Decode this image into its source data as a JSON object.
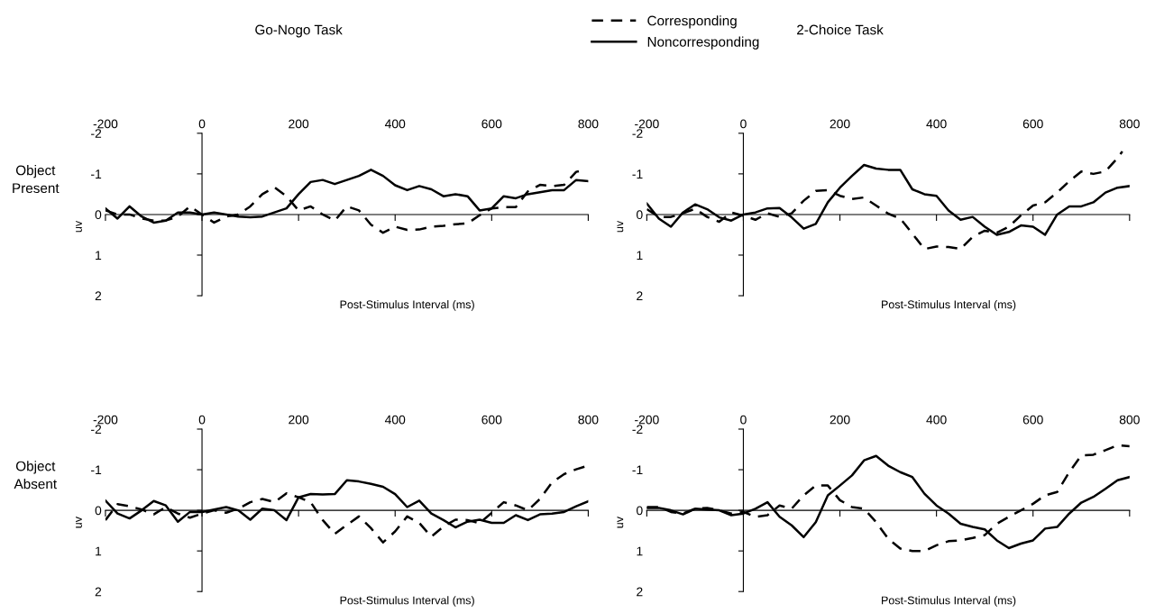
{
  "chart_data": [
    {
      "type": "line",
      "title": "Go-Nogo Task",
      "annotations": [
        "Object\nPresent"
      ],
      "xlabel": "Post-Stimulus Interval (ms)",
      "ylabel": "uv",
      "legend": "top",
      "xlim": [
        -200,
        800
      ],
      "ylim": [
        2,
        -2
      ],
      "xticks": [
        -200,
        0,
        200,
        400,
        600,
        800
      ],
      "yticks": [
        -2,
        -1,
        0,
        1,
        2
      ],
      "x": [
        -200,
        -175,
        -150,
        -125,
        -100,
        -75,
        -50,
        -25,
        0,
        25,
        50,
        75,
        100,
        125,
        150,
        175,
        200,
        225,
        250,
        275,
        300,
        325,
        350,
        375,
        400,
        425,
        450,
        475,
        500,
        525,
        550,
        575,
        600,
        625,
        650,
        675,
        700,
        725,
        750,
        775,
        800
      ],
      "series": [
        {
          "name": "Corresponding",
          "color": "#000000",
          "line_style": "dashed",
          "x": [
            -200,
            -175,
            -150,
            -125,
            -100,
            -75,
            -50,
            -25,
            0,
            25,
            50,
            75,
            100,
            125,
            150,
            175,
            200,
            225,
            250,
            275,
            300,
            325,
            350,
            375,
            400,
            425,
            450,
            475,
            500,
            525,
            550,
            575,
            600,
            625,
            650,
            675,
            700,
            725,
            750,
            775,
            782
          ],
          "values": [
            -0.1,
            0.0,
            0.0,
            0.1,
            0.15,
            0.15,
            0.05,
            -0.2,
            0.0,
            0.2,
            0.05,
            0.0,
            -0.2,
            -0.5,
            -0.67,
            -0.45,
            -0.1,
            -0.2,
            0.0,
            0.15,
            -0.2,
            -0.1,
            0.25,
            0.45,
            0.3,
            0.38,
            0.37,
            0.3,
            0.28,
            0.24,
            0.22,
            0.02,
            -0.15,
            -0.18,
            -0.18,
            -0.57,
            -0.73,
            -0.7,
            -0.73,
            -1.05,
            -1.07
          ]
        },
        {
          "name": "Noncorresponding",
          "color": "#000000",
          "line_style": "solid",
          "values": [
            -0.15,
            0.1,
            -0.2,
            0.05,
            0.2,
            0.15,
            -0.05,
            -0.05,
            0.0,
            -0.05,
            0.0,
            0.05,
            0.07,
            0.05,
            -0.05,
            -0.15,
            -0.5,
            -0.8,
            -0.85,
            -0.75,
            -0.85,
            -0.95,
            -1.1,
            -0.95,
            -0.72,
            -0.6,
            -0.7,
            -0.62,
            -0.45,
            -0.5,
            -0.45,
            -0.1,
            -0.15,
            -0.45,
            -0.4,
            -0.5,
            -0.55,
            -0.6,
            -0.6,
            -0.85,
            -0.82
          ]
        }
      ]
    },
    {
      "type": "line",
      "title": "2-Choice Task",
      "xlabel": "Post-Stimulus Interval (ms)",
      "ylabel": "uv",
      "xlim": [
        -200,
        800
      ],
      "ylim": [
        2,
        -2
      ],
      "xticks": [
        -200,
        0,
        200,
        400,
        600,
        800
      ],
      "yticks": [
        -2,
        -1,
        0,
        1,
        2
      ],
      "x": [
        -200,
        -175,
        -150,
        -125,
        -100,
        -75,
        -50,
        -25,
        0,
        25,
        50,
        75,
        100,
        125,
        150,
        175,
        200,
        225,
        250,
        275,
        300,
        325,
        350,
        375,
        400,
        425,
        450,
        475,
        500,
        525,
        550,
        575,
        600,
        625,
        650,
        675,
        700,
        725,
        750,
        775,
        800
      ],
      "series": [
        {
          "color": "#000000",
          "line_style": "dashed",
          "x": [
            -200,
            -175,
            -150,
            -125,
            -100,
            -75,
            -50,
            -25,
            0,
            25,
            50,
            75,
            100,
            125,
            150,
            175,
            200,
            225,
            250,
            275,
            300,
            325,
            350,
            375,
            400,
            425,
            450,
            475,
            500,
            525,
            550,
            575,
            600,
            625,
            650,
            675,
            700,
            725,
            750,
            775,
            785
          ],
          "values": [
            -0.13,
            0.06,
            0.06,
            -0.03,
            -0.14,
            0.06,
            0.18,
            -0.05,
            0.03,
            0.13,
            -0.03,
            0.06,
            -0.03,
            -0.34,
            -0.58,
            -0.6,
            -0.46,
            -0.38,
            -0.42,
            -0.22,
            -0.02,
            0.1,
            0.47,
            0.85,
            0.79,
            0.8,
            0.85,
            0.55,
            0.4,
            0.45,
            0.3,
            0.02,
            -0.22,
            -0.3,
            -0.54,
            -0.82,
            -1.06,
            -1.0,
            -1.06,
            -1.39,
            -1.55
          ]
        },
        {
          "color": "#000000",
          "line_style": "solid",
          "values": [
            -0.27,
            0.1,
            0.3,
            -0.05,
            -0.25,
            -0.13,
            0.07,
            0.15,
            0.0,
            -0.05,
            -0.15,
            -0.16,
            0.07,
            0.35,
            0.23,
            -0.3,
            -0.66,
            -0.95,
            -1.22,
            -1.13,
            -1.1,
            -1.1,
            -0.62,
            -0.5,
            -0.46,
            -0.1,
            0.13,
            0.06,
            0.3,
            0.5,
            0.43,
            0.27,
            0.3,
            0.5,
            0.0,
            -0.2,
            -0.2,
            -0.3,
            -0.54,
            -0.66,
            -0.7
          ]
        }
      ]
    },
    {
      "type": "line",
      "annotations": [
        "Object\nAbsent"
      ],
      "xlabel": "Post-Stimulus Interval (ms)",
      "ylabel": "uv",
      "xlim": [
        -200,
        800
      ],
      "ylim": [
        2,
        -2
      ],
      "xticks": [
        -200,
        0,
        200,
        400,
        600,
        800
      ],
      "yticks": [
        -2,
        -1,
        0,
        1,
        2
      ],
      "x": [
        -200,
        -175,
        -150,
        -125,
        -100,
        -75,
        -50,
        -25,
        0,
        25,
        50,
        75,
        100,
        125,
        150,
        175,
        200,
        225,
        250,
        275,
        300,
        325,
        350,
        375,
        400,
        425,
        450,
        475,
        500,
        525,
        550,
        575,
        600,
        625,
        650,
        675,
        700,
        725,
        750,
        775,
        800
      ],
      "series": [
        {
          "color": "#000000",
          "line_style": "dashed",
          "values": [
            0.24,
            -0.15,
            -0.1,
            -0.02,
            0.1,
            -0.08,
            0.08,
            0.18,
            0.08,
            0.0,
            0.06,
            -0.04,
            -0.2,
            -0.28,
            -0.2,
            -0.42,
            -0.32,
            -0.2,
            0.24,
            0.58,
            0.36,
            0.15,
            0.44,
            0.79,
            0.52,
            0.15,
            0.31,
            0.65,
            0.4,
            0.23,
            0.24,
            0.32,
            0.06,
            -0.2,
            -0.12,
            0.0,
            -0.28,
            -0.69,
            -0.89,
            -1.01,
            -1.1
          ]
        },
        {
          "color": "#000000",
          "line_style": "solid",
          "values": [
            -0.24,
            0.08,
            0.2,
            0.0,
            -0.23,
            -0.12,
            0.28,
            0.04,
            0.04,
            -0.02,
            -0.08,
            0.0,
            0.23,
            -0.04,
            0.0,
            0.24,
            -0.32,
            -0.4,
            -0.39,
            -0.4,
            -0.74,
            -0.71,
            -0.65,
            -0.58,
            -0.4,
            -0.08,
            -0.24,
            0.08,
            0.24,
            0.42,
            0.28,
            0.23,
            0.31,
            0.31,
            0.12,
            0.24,
            0.1,
            0.08,
            0.04,
            -0.1,
            -0.22
          ]
        }
      ]
    },
    {
      "type": "line",
      "xlabel": "Post-Stimulus Interval (ms)",
      "ylabel": "uv",
      "xlim": [
        -200,
        800
      ],
      "ylim": [
        2,
        -2
      ],
      "xticks": [
        -200,
        0,
        200,
        400,
        600,
        800
      ],
      "yticks": [
        -2,
        -1,
        0,
        1,
        2
      ],
      "x": [
        -200,
        -175,
        -150,
        -125,
        -100,
        -75,
        -50,
        -25,
        0,
        25,
        50,
        75,
        100,
        125,
        150,
        175,
        200,
        225,
        250,
        275,
        300,
        325,
        350,
        375,
        400,
        425,
        450,
        475,
        500,
        525,
        550,
        575,
        600,
        625,
        650,
        675,
        700,
        725,
        750,
        775,
        800
      ],
      "series": [
        {
          "color": "#000000",
          "line_style": "dashed",
          "values": [
            -0.08,
            -0.08,
            0.04,
            0.08,
            -0.04,
            -0.06,
            0.0,
            0.08,
            0.04,
            0.16,
            0.12,
            -0.12,
            -0.04,
            -0.37,
            -0.61,
            -0.61,
            -0.25,
            -0.08,
            -0.04,
            0.29,
            0.7,
            0.94,
            1.0,
            1.0,
            0.86,
            0.76,
            0.74,
            0.68,
            0.61,
            0.33,
            0.16,
            0.0,
            -0.16,
            -0.37,
            -0.45,
            -0.94,
            -1.35,
            -1.37,
            -1.48,
            -1.6,
            -1.58
          ]
        },
        {
          "color": "#000000",
          "line_style": "solid",
          "values": [
            -0.06,
            -0.06,
            0.0,
            0.1,
            -0.04,
            -0.02,
            0.0,
            0.12,
            0.08,
            -0.04,
            -0.2,
            0.16,
            0.37,
            0.66,
            0.29,
            -0.37,
            -0.61,
            -0.86,
            -1.23,
            -1.34,
            -1.1,
            -0.94,
            -0.82,
            -0.41,
            -0.12,
            0.08,
            0.33,
            0.41,
            0.47,
            0.74,
            0.93,
            0.82,
            0.74,
            0.45,
            0.41,
            0.08,
            -0.19,
            -0.33,
            -0.53,
            -0.74,
            -0.82
          ]
        }
      ]
    }
  ]
}
